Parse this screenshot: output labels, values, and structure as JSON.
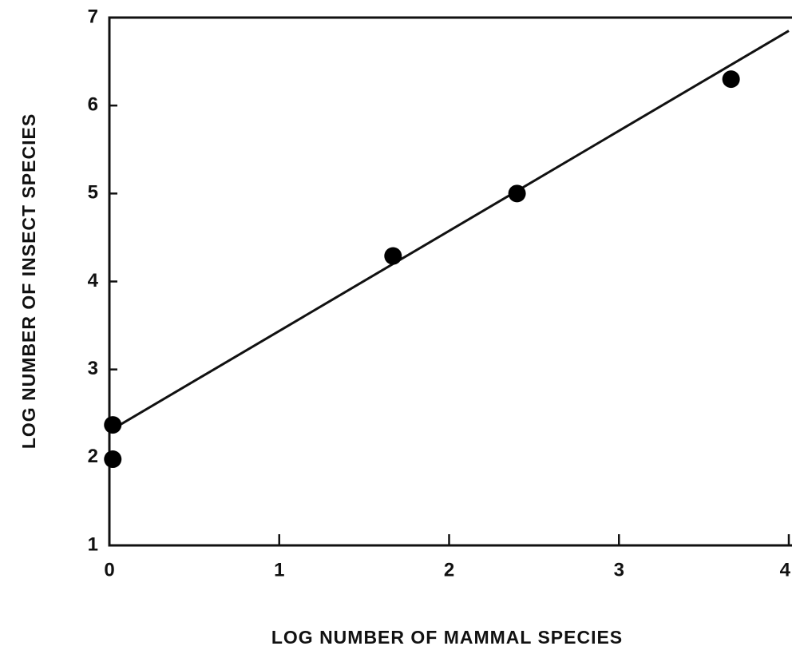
{
  "chart_data": {
    "type": "scatter",
    "xlabel": "LOG NUMBER OF MAMMAL SPECIES",
    "ylabel": "LOG NUMBER OF INSECT SPECIES",
    "x": [
      0.02,
      0.02,
      1.67,
      2.4,
      3.66
    ],
    "values": [
      2.37,
      1.98,
      4.29,
      5.0,
      6.3
    ],
    "color": "#000000",
    "fit_line": {
      "x": [
        0,
        4
      ],
      "values": [
        2.3,
        6.85
      ]
    },
    "xlim": [
      0,
      4
    ],
    "xticks": [
      0,
      1,
      2,
      3,
      4
    ],
    "ylim": [
      1,
      7
    ],
    "yticks": [
      1,
      2,
      3,
      4,
      5,
      6,
      7
    ],
    "grid": false
  }
}
